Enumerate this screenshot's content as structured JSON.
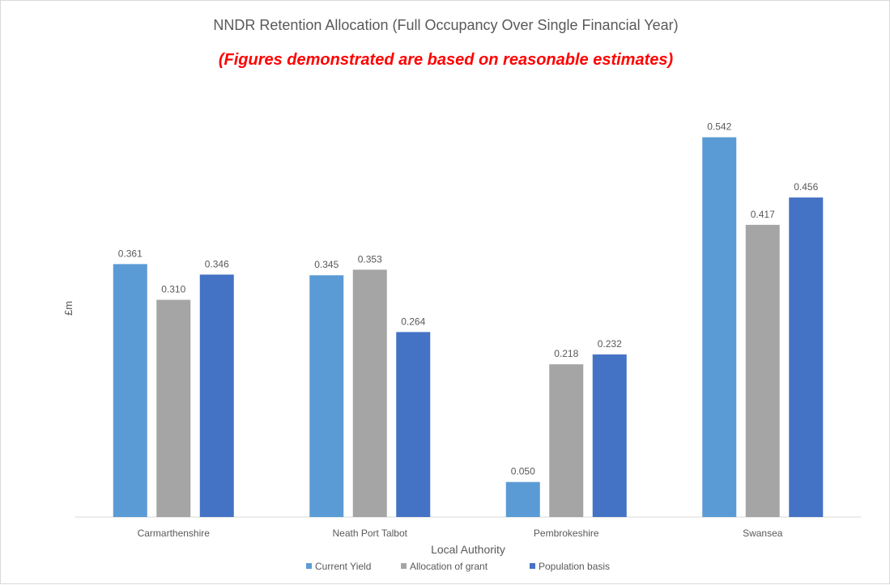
{
  "chart_data": {
    "type": "bar",
    "title": "NNDR Retention Allocation (Full Occupancy Over Single Financial Year)",
    "subtitle": "(Figures demonstrated are based on reasonable estimates)",
    "xlabel": "Local Authority",
    "ylabel": "£m",
    "categories": [
      "Carmarthenshire",
      "Neath Port Talbot",
      "Pembrokeshire",
      "Swansea"
    ],
    "series": [
      {
        "name": "Current Yield",
        "color": "#5b9bd5",
        "values": [
          0.361,
          0.345,
          0.05,
          0.542
        ],
        "labels": [
          "0.361",
          "0.345",
          "0.050",
          "0.542"
        ]
      },
      {
        "name": "Allocation of grant",
        "color": "#a5a5a5",
        "values": [
          0.31,
          0.353,
          0.218,
          0.417
        ],
        "labels": [
          "0.310",
          "0.353",
          "0.218",
          "0.417"
        ]
      },
      {
        "name": "Population basis",
        "color": "#4472c4",
        "values": [
          0.346,
          0.264,
          0.232,
          0.456
        ],
        "labels": [
          "0.346",
          "0.264",
          "0.232",
          "0.456"
        ]
      }
    ],
    "ylim": [
      0,
      0.6
    ],
    "grid": false,
    "legend": "bottom",
    "title_color": "#595959",
    "subtitle_color": "#ff0000"
  }
}
